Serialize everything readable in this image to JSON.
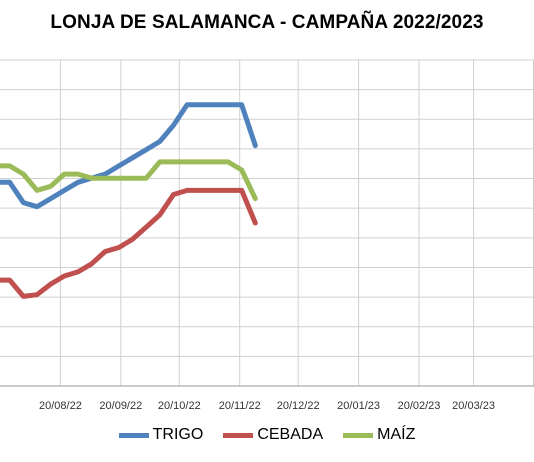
{
  "chart_data": {
    "type": "line",
    "title": "LONJA DE SALAMANCA - CAMPAÑA 2022/2023",
    "x_ticks": [
      "20/08/22",
      "20/09/22",
      "20/10/22",
      "20/11/22",
      "20/12/22",
      "20/01/23",
      "20/02/23",
      "20/03/23"
    ],
    "x_range": [
      "2022-07-20",
      "2023-04-20"
    ],
    "grid": true,
    "legend_position": "bottom",
    "series": [
      {
        "name": "TRIGO",
        "color": "#4F81BD",
        "x": [
          "2022-07-20",
          "2022-07-25",
          "2022-08-01",
          "2022-08-08",
          "2022-08-15",
          "2022-08-22",
          "2022-08-29",
          "2022-09-05",
          "2022-09-12",
          "2022-09-19",
          "2022-09-26",
          "2022-10-03",
          "2022-10-10",
          "2022-10-17",
          "2022-10-24",
          "2022-10-31",
          "2022-11-07",
          "2022-11-14",
          "2022-11-21",
          "2022-11-28"
        ],
        "values": [
          0.65,
          0.65,
          0.625,
          0.62,
          0.63,
          0.64,
          0.65,
          0.655,
          0.66,
          0.67,
          0.68,
          0.69,
          0.7,
          0.72,
          0.745,
          0.745,
          0.745,
          0.745,
          0.745,
          0.695
        ]
      },
      {
        "name": "CEBADA",
        "color": "#C0504D",
        "x": [
          "2022-07-20",
          "2022-07-25",
          "2022-08-01",
          "2022-08-08",
          "2022-08-15",
          "2022-08-22",
          "2022-08-29",
          "2022-09-05",
          "2022-09-12",
          "2022-09-19",
          "2022-09-26",
          "2022-10-03",
          "2022-10-10",
          "2022-10-17",
          "2022-10-24",
          "2022-10-31",
          "2022-11-07",
          "2022-11-14",
          "2022-11-21",
          "2022-11-28"
        ],
        "values": [
          0.53,
          0.53,
          0.51,
          0.512,
          0.525,
          0.535,
          0.54,
          0.55,
          0.565,
          0.57,
          0.58,
          0.595,
          0.61,
          0.635,
          0.64,
          0.64,
          0.64,
          0.64,
          0.64,
          0.6
        ]
      },
      {
        "name": "MAÍZ",
        "color": "#9BBB59",
        "x": [
          "2022-07-20",
          "2022-07-25",
          "2022-08-01",
          "2022-08-08",
          "2022-08-15",
          "2022-08-22",
          "2022-08-29",
          "2022-09-05",
          "2022-09-12",
          "2022-09-19",
          "2022-09-26",
          "2022-10-03",
          "2022-10-10",
          "2022-10-17",
          "2022-10-24",
          "2022-10-31",
          "2022-11-07",
          "2022-11-14",
          "2022-11-21",
          "2022-11-28"
        ],
        "values": [
          0.67,
          0.67,
          0.66,
          0.64,
          0.645,
          0.66,
          0.66,
          0.655,
          0.655,
          0.655,
          0.655,
          0.655,
          0.675,
          0.675,
          0.675,
          0.675,
          0.675,
          0.675,
          0.665,
          0.63
        ]
      }
    ]
  }
}
